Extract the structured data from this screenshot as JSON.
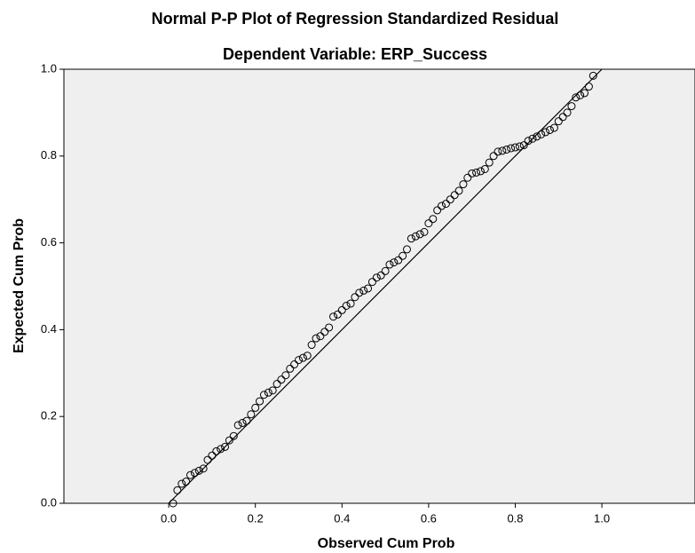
{
  "chart_data": {
    "type": "scatter",
    "title": "Normal P-P Plot of Regression Standardized Residual",
    "subtitle": "Dependent Variable: ERP_Success",
    "x_label": "Observed Cum Prob",
    "y_label": "Expected Cum Prob",
    "color": "#000000",
    "x": [
      0.01,
      0.02,
      0.03,
      0.04,
      0.05,
      0.06,
      0.07,
      0.08,
      0.09,
      0.1,
      0.11,
      0.12,
      0.13,
      0.14,
      0.15,
      0.16,
      0.17,
      0.18,
      0.19,
      0.2,
      0.21,
      0.22,
      0.23,
      0.24,
      0.25,
      0.26,
      0.27,
      0.28,
      0.29,
      0.3,
      0.31,
      0.32,
      0.33,
      0.34,
      0.35,
      0.36,
      0.37,
      0.38,
      0.39,
      0.4,
      0.41,
      0.42,
      0.43,
      0.44,
      0.45,
      0.46,
      0.47,
      0.48,
      0.49,
      0.5,
      0.51,
      0.52,
      0.53,
      0.54,
      0.55,
      0.56,
      0.57,
      0.58,
      0.59,
      0.6,
      0.61,
      0.62,
      0.63,
      0.64,
      0.65,
      0.66,
      0.67,
      0.68,
      0.69,
      0.7,
      0.71,
      0.72,
      0.73,
      0.74,
      0.75,
      0.76,
      0.77,
      0.78,
      0.79,
      0.8,
      0.81,
      0.82,
      0.83,
      0.84,
      0.85,
      0.86,
      0.87,
      0.88,
      0.89,
      0.9,
      0.91,
      0.92,
      0.93,
      0.94,
      0.95,
      0.96,
      0.97,
      0.98
    ],
    "values": [
      0.0,
      0.03,
      0.045,
      0.05,
      0.065,
      0.07,
      0.075,
      0.08,
      0.1,
      0.11,
      0.12,
      0.125,
      0.13,
      0.145,
      0.155,
      0.18,
      0.185,
      0.19,
      0.205,
      0.22,
      0.235,
      0.25,
      0.255,
      0.26,
      0.275,
      0.285,
      0.295,
      0.31,
      0.32,
      0.33,
      0.335,
      0.34,
      0.365,
      0.38,
      0.385,
      0.395,
      0.405,
      0.43,
      0.435,
      0.445,
      0.455,
      0.46,
      0.475,
      0.485,
      0.49,
      0.495,
      0.51,
      0.52,
      0.525,
      0.535,
      0.55,
      0.555,
      0.56,
      0.57,
      0.585,
      0.61,
      0.615,
      0.62,
      0.625,
      0.645,
      0.655,
      0.675,
      0.685,
      0.69,
      0.7,
      0.71,
      0.72,
      0.735,
      0.75,
      0.76,
      0.762,
      0.765,
      0.77,
      0.785,
      0.8,
      0.81,
      0.812,
      0.815,
      0.818,
      0.82,
      0.822,
      0.825,
      0.835,
      0.84,
      0.845,
      0.85,
      0.855,
      0.86,
      0.865,
      0.88,
      0.89,
      0.9,
      0.915,
      0.935,
      0.94,
      0.945,
      0.96,
      0.985
    ],
    "xlim": [
      -0.242,
      1.215
    ],
    "ylim": [
      0,
      1
    ],
    "xticks": [
      {
        "value": 0,
        "label": "0.0"
      },
      {
        "value": 0.2,
        "label": "0.2"
      },
      {
        "value": 0.4,
        "label": "0.4"
      },
      {
        "value": 0.6,
        "label": "0.6"
      },
      {
        "value": 0.8,
        "label": "0.8"
      },
      {
        "value": 1,
        "label": "1.0"
      }
    ],
    "yticks": [
      {
        "value": 0,
        "label": "0.0"
      },
      {
        "value": 0.2,
        "label": "0.2"
      },
      {
        "value": 0.4,
        "label": "0.4"
      },
      {
        "value": 0.6,
        "label": "0.6"
      },
      {
        "value": 0.8,
        "label": "0.8"
      },
      {
        "value": 1,
        "label": "1.0"
      }
    ]
  }
}
